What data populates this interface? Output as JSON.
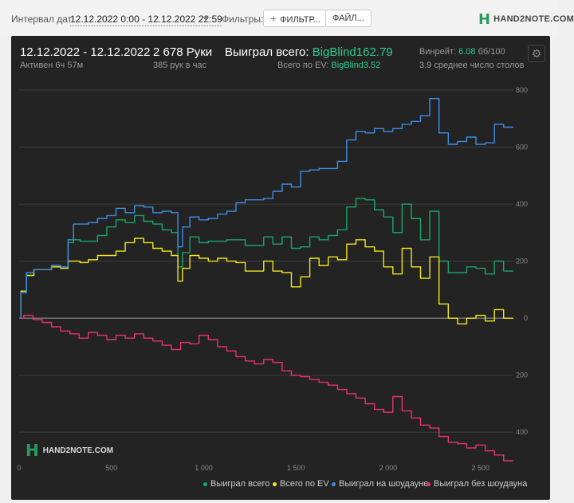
{
  "toolbar": {
    "interval_label": "Интервал дат:",
    "date_range": "12.12.2022 0:00 - 12.12.2022 22:59",
    "filters_label": "Фильтры:",
    "filter_button": "ФИЛЬТР...",
    "file_button": "ФАЙЛ...",
    "logo_text": "HAND2NOTE.COM"
  },
  "stats": {
    "period": "12.12.2022 - 12.12.2022",
    "active": "Активен 6ч 57м",
    "hands": "2 678 Руки",
    "hands_per_hour": "385 рук в час",
    "won_label": "Выиграл всего:",
    "won_value": "BigBlind162.79",
    "ev_label": "Всего по EV:",
    "ev_value": "BigBlind3.52",
    "winrate_label": "Винрейт:",
    "winrate_value": "6.08",
    "winrate_unit": "бб/100",
    "tables": "3.9 среднее число столов"
  },
  "watermark": "HAND2NOTE.COM",
  "colors": {
    "total": "#19a56e",
    "ev": "#f2e61a",
    "showdown": "#3e8ee6",
    "nonshowdown": "#e8336f",
    "background": "#232323"
  },
  "chart_data": {
    "type": "line",
    "xlim": [
      0,
      2678
    ],
    "ylim": [
      -500,
      800
    ],
    "x_ticks": [
      0,
      500,
      1000,
      1500,
      2000,
      2500
    ],
    "x_tick_labels": [
      "0",
      "500",
      "1 000",
      "1 500",
      "2 000",
      "2 500"
    ],
    "y_ticks": [
      800,
      600,
      400,
      200,
      0,
      -200,
      -400
    ],
    "y_tick_labels": [
      "800",
      "600",
      "400",
      "200",
      "0",
      "200",
      "400"
    ],
    "series": [
      {
        "name": "Выиграл всего",
        "color": "#19a56e",
        "points": [
          [
            0,
            0
          ],
          [
            20,
            95
          ],
          [
            60,
            150
          ],
          [
            100,
            170
          ],
          [
            150,
            170
          ],
          [
            200,
            180
          ],
          [
            250,
            175
          ],
          [
            280,
            265
          ],
          [
            310,
            275
          ],
          [
            350,
            270
          ],
          [
            400,
            270
          ],
          [
            450,
            290
          ],
          [
            500,
            320
          ],
          [
            550,
            345
          ],
          [
            600,
            335
          ],
          [
            650,
            360
          ],
          [
            700,
            340
          ],
          [
            750,
            330
          ],
          [
            800,
            310
          ],
          [
            850,
            300
          ],
          [
            870,
            180
          ],
          [
            900,
            230
          ],
          [
            950,
            285
          ],
          [
            1000,
            265
          ],
          [
            1050,
            270
          ],
          [
            1100,
            270
          ],
          [
            1150,
            275
          ],
          [
            1200,
            275
          ],
          [
            1250,
            255
          ],
          [
            1300,
            255
          ],
          [
            1350,
            285
          ],
          [
            1400,
            260
          ],
          [
            1450,
            285
          ],
          [
            1500,
            245
          ],
          [
            1550,
            250
          ],
          [
            1600,
            285
          ],
          [
            1650,
            275
          ],
          [
            1700,
            290
          ],
          [
            1750,
            310
          ],
          [
            1800,
            390
          ],
          [
            1850,
            420
          ],
          [
            1900,
            415
          ],
          [
            1950,
            380
          ],
          [
            2000,
            355
          ],
          [
            2050,
            300
          ],
          [
            2100,
            400
          ],
          [
            2150,
            350
          ],
          [
            2200,
            275
          ],
          [
            2250,
            375
          ],
          [
            2300,
            200
          ],
          [
            2350,
            160
          ],
          [
            2400,
            160
          ],
          [
            2450,
            180
          ],
          [
            2500,
            175
          ],
          [
            2550,
            155
          ],
          [
            2600,
            200
          ],
          [
            2650,
            165
          ],
          [
            2678,
            165
          ]
        ]
      },
      {
        "name": "Всего по EV",
        "color": "#f2e61a",
        "points": [
          [
            0,
            0
          ],
          [
            20,
            95
          ],
          [
            60,
            150
          ],
          [
            100,
            170
          ],
          [
            150,
            170
          ],
          [
            200,
            180
          ],
          [
            250,
            175
          ],
          [
            280,
            200
          ],
          [
            310,
            200
          ],
          [
            350,
            195
          ],
          [
            400,
            205
          ],
          [
            450,
            220
          ],
          [
            500,
            220
          ],
          [
            550,
            235
          ],
          [
            600,
            265
          ],
          [
            650,
            280
          ],
          [
            700,
            265
          ],
          [
            750,
            245
          ],
          [
            800,
            235
          ],
          [
            850,
            220
          ],
          [
            870,
            130
          ],
          [
            900,
            175
          ],
          [
            950,
            220
          ],
          [
            1000,
            210
          ],
          [
            1050,
            200
          ],
          [
            1100,
            210
          ],
          [
            1150,
            200
          ],
          [
            1200,
            195
          ],
          [
            1250,
            165
          ],
          [
            1300,
            165
          ],
          [
            1350,
            200
          ],
          [
            1400,
            165
          ],
          [
            1450,
            160
          ],
          [
            1500,
            110
          ],
          [
            1550,
            145
          ],
          [
            1600,
            210
          ],
          [
            1650,
            185
          ],
          [
            1700,
            215
          ],
          [
            1750,
            205
          ],
          [
            1800,
            260
          ],
          [
            1850,
            275
          ],
          [
            1900,
            250
          ],
          [
            1950,
            235
          ],
          [
            2000,
            180
          ],
          [
            2050,
            155
          ],
          [
            2100,
            245
          ],
          [
            2150,
            180
          ],
          [
            2200,
            140
          ],
          [
            2250,
            215
          ],
          [
            2300,
            50
          ],
          [
            2350,
            0
          ],
          [
            2400,
            -20
          ],
          [
            2450,
            0
          ],
          [
            2500,
            10
          ],
          [
            2550,
            -10
          ],
          [
            2600,
            30
          ],
          [
            2650,
            0
          ],
          [
            2678,
            0
          ]
        ]
      },
      {
        "name": "Выиграл на шоудауне",
        "color": "#3e8ee6",
        "points": [
          [
            0,
            0
          ],
          [
            20,
            90
          ],
          [
            60,
            160
          ],
          [
            100,
            170
          ],
          [
            150,
            170
          ],
          [
            200,
            185
          ],
          [
            250,
            180
          ],
          [
            280,
            275
          ],
          [
            310,
            330
          ],
          [
            350,
            330
          ],
          [
            400,
            335
          ],
          [
            450,
            350
          ],
          [
            500,
            360
          ],
          [
            550,
            385
          ],
          [
            600,
            370
          ],
          [
            650,
            395
          ],
          [
            700,
            390
          ],
          [
            750,
            370
          ],
          [
            800,
            375
          ],
          [
            850,
            370
          ],
          [
            870,
            250
          ],
          [
            900,
            320
          ],
          [
            950,
            355
          ],
          [
            1000,
            345
          ],
          [
            1050,
            350
          ],
          [
            1100,
            365
          ],
          [
            1150,
            375
          ],
          [
            1200,
            405
          ],
          [
            1250,
            415
          ],
          [
            1300,
            415
          ],
          [
            1350,
            420
          ],
          [
            1400,
            445
          ],
          [
            1450,
            470
          ],
          [
            1500,
            460
          ],
          [
            1550,
            515
          ],
          [
            1600,
            520
          ],
          [
            1650,
            525
          ],
          [
            1700,
            525
          ],
          [
            1750,
            550
          ],
          [
            1800,
            625
          ],
          [
            1850,
            655
          ],
          [
            1900,
            650
          ],
          [
            1950,
            665
          ],
          [
            2000,
            655
          ],
          [
            2050,
            665
          ],
          [
            2100,
            680
          ],
          [
            2150,
            690
          ],
          [
            2200,
            710
          ],
          [
            2250,
            770
          ],
          [
            2300,
            650
          ],
          [
            2350,
            610
          ],
          [
            2400,
            620
          ],
          [
            2450,
            635
          ],
          [
            2500,
            610
          ],
          [
            2550,
            615
          ],
          [
            2600,
            680
          ],
          [
            2650,
            670
          ],
          [
            2678,
            670
          ]
        ]
      },
      {
        "name": "Выиграл без шоудауна",
        "color": "#e8336f",
        "points": [
          [
            0,
            0
          ],
          [
            50,
            10
          ],
          [
            100,
            -5
          ],
          [
            150,
            -15
          ],
          [
            200,
            -30
          ],
          [
            250,
            -45
          ],
          [
            300,
            -55
          ],
          [
            350,
            -70
          ],
          [
            400,
            -50
          ],
          [
            450,
            -60
          ],
          [
            500,
            -75
          ],
          [
            550,
            -60
          ],
          [
            600,
            -70
          ],
          [
            650,
            -55
          ],
          [
            700,
            -70
          ],
          [
            750,
            -80
          ],
          [
            800,
            -95
          ],
          [
            850,
            -110
          ],
          [
            900,
            -85
          ],
          [
            950,
            -90
          ],
          [
            1000,
            -60
          ],
          [
            1050,
            -75
          ],
          [
            1100,
            -100
          ],
          [
            1150,
            -115
          ],
          [
            1200,
            -135
          ],
          [
            1250,
            -150
          ],
          [
            1300,
            -160
          ],
          [
            1350,
            -145
          ],
          [
            1400,
            -155
          ],
          [
            1450,
            -185
          ],
          [
            1500,
            -200
          ],
          [
            1550,
            -205
          ],
          [
            1600,
            -215
          ],
          [
            1650,
            -225
          ],
          [
            1700,
            -235
          ],
          [
            1750,
            -250
          ],
          [
            1800,
            -265
          ],
          [
            1850,
            -280
          ],
          [
            1900,
            -300
          ],
          [
            1950,
            -320
          ],
          [
            2000,
            -330
          ],
          [
            2050,
            -275
          ],
          [
            2100,
            -325
          ],
          [
            2150,
            -350
          ],
          [
            2200,
            -375
          ],
          [
            2250,
            -385
          ],
          [
            2300,
            -415
          ],
          [
            2350,
            -435
          ],
          [
            2400,
            -440
          ],
          [
            2450,
            -455
          ],
          [
            2500,
            -445
          ],
          [
            2550,
            -465
          ],
          [
            2600,
            -480
          ],
          [
            2650,
            -500
          ],
          [
            2678,
            -500
          ]
        ]
      }
    ]
  }
}
